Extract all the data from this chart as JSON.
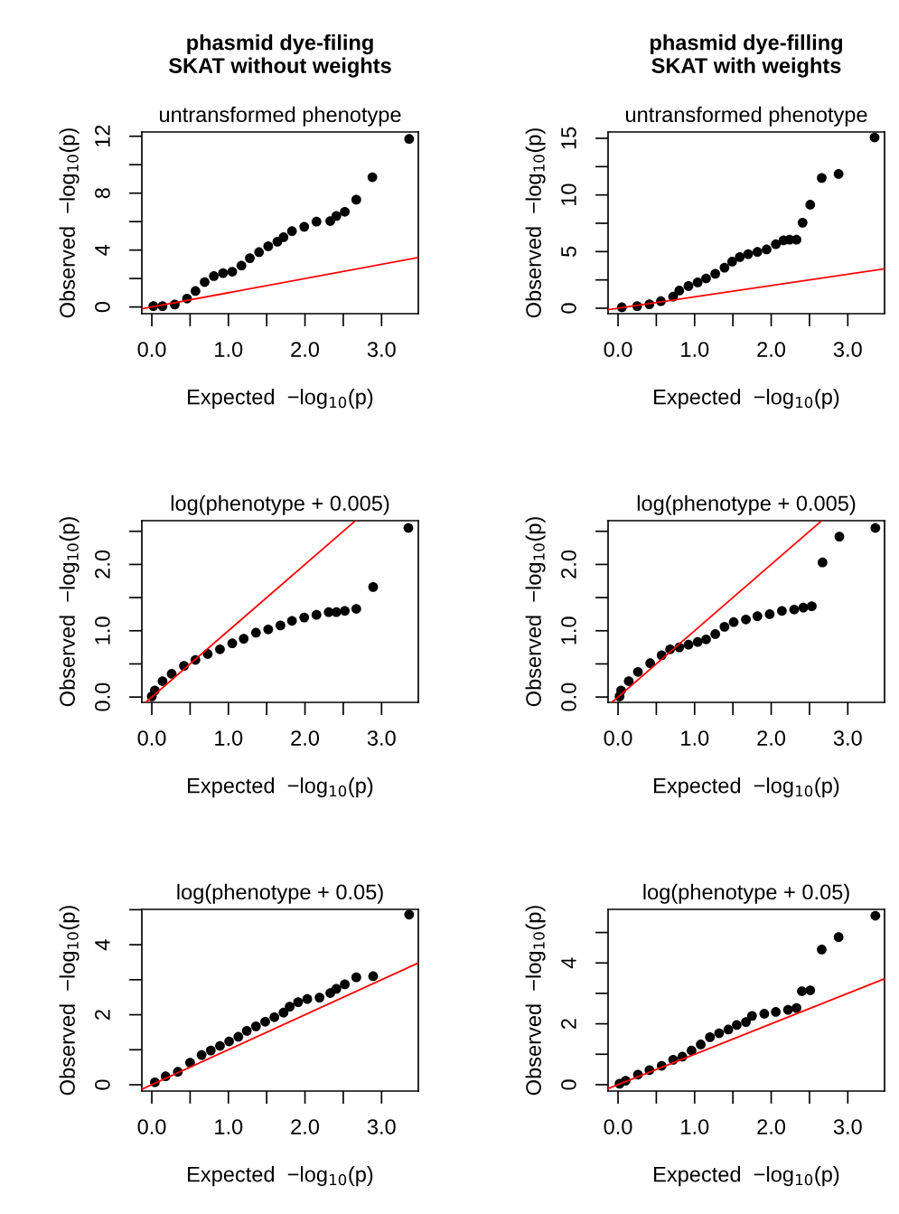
{
  "chart_data": [
    {
      "type": "scatter",
      "title": "phasmid dye-filing\nSKAT without weights",
      "subtitle": "untransformed phenotype",
      "xlabel": "Expected  −log$_{10}$(p)",
      "ylabel": "Observed  −log$_{10}$(p)",
      "xlim": [
        -0.13,
        3.48
      ],
      "ylim": [
        -0.47,
        12.3
      ],
      "xticks": [
        {
          "value": 0,
          "label": "0.0"
        },
        {
          "value": 0.5,
          "label": null
        },
        {
          "value": 1,
          "label": "1.0"
        },
        {
          "value": 1.5,
          "label": null
        },
        {
          "value": 2,
          "label": "2.0"
        },
        {
          "value": 2.5,
          "label": null
        },
        {
          "value": 3,
          "label": "3.0"
        }
      ],
      "yticks": [
        0,
        {
          "value": 2,
          "label": null
        },
        4,
        {
          "value": 6,
          "label": null
        },
        8,
        {
          "value": 10,
          "label": null
        },
        12
      ],
      "series": [
        {
          "marker": "circle",
          "color": "#000000",
          "x": [
            0.02,
            0.14,
            0.3,
            0.46,
            0.57,
            0.69,
            0.81,
            0.93,
            1.05,
            1.17,
            1.28,
            1.4,
            1.52,
            1.64,
            1.72,
            1.83,
            1.99,
            2.15,
            2.33,
            2.41,
            2.52,
            2.67,
            2.88,
            3.36
          ],
          "values": [
            0.06,
            0.06,
            0.17,
            0.59,
            1.12,
            1.75,
            2.17,
            2.38,
            2.48,
            2.91,
            3.43,
            3.85,
            4.27,
            4.59,
            4.9,
            5.33,
            5.64,
            6.0,
            6.04,
            6.4,
            6.69,
            7.54,
            9.12,
            11.81
          ]
        },
        {
          "type": "line",
          "color": "#ff0000",
          "x": [
            -0.13,
            3.48
          ],
          "values": [
            -0.13,
            3.48
          ]
        }
      ]
    },
    {
      "type": "scatter",
      "title": "phasmid dye-filling\nSKAT with weights",
      "subtitle": "untransformed phenotype",
      "xlabel": "Expected  −log$_{10}$(p)",
      "ylabel": "Observed  −log$_{10}$(p)",
      "xlim": [
        -0.13,
        3.48
      ],
      "ylim": [
        -0.48,
        15.56
      ],
      "xticks": [
        {
          "value": 0,
          "label": "0.0"
        },
        {
          "value": 0.5,
          "label": null
        },
        {
          "value": 1,
          "label": "1.0"
        },
        {
          "value": 1.5,
          "label": null
        },
        {
          "value": 2,
          "label": "2.0"
        },
        {
          "value": 2.5,
          "label": null
        },
        {
          "value": 3,
          "label": "3.0"
        }
      ],
      "yticks": [
        0,
        {
          "value": 2.5,
          "label": null
        },
        5,
        {
          "value": 7.5,
          "label": null
        },
        10,
        {
          "value": 12.5,
          "label": null
        },
        15
      ],
      "series": [
        {
          "marker": "circle",
          "color": "#000000",
          "x": [
            0.05,
            0.25,
            0.41,
            0.56,
            0.72,
            0.8,
            0.92,
            1.04,
            1.15,
            1.27,
            1.39,
            1.49,
            1.59,
            1.7,
            1.82,
            1.94,
            2.06,
            2.16,
            2.24,
            2.33,
            2.41,
            2.51,
            2.66,
            2.88,
            3.35
          ],
          "values": [
            0.08,
            0.19,
            0.35,
            0.62,
            1.02,
            1.56,
            1.96,
            2.28,
            2.63,
            3.04,
            3.58,
            4.11,
            4.52,
            4.78,
            4.97,
            5.19,
            5.65,
            5.99,
            6.05,
            6.05,
            7.55,
            9.14,
            11.5,
            11.85,
            15.08
          ]
        },
        {
          "type": "line",
          "color": "#ff0000",
          "x": [
            -0.13,
            3.48
          ],
          "values": [
            -0.13,
            3.48
          ]
        }
      ]
    },
    {
      "type": "scatter",
      "subtitle": "log(phenotype + 0.005)",
      "xlabel": "Expected  −log$_{10}$(p)",
      "ylabel": "Observed  −log$_{10}$(p)",
      "xlim": [
        -0.13,
        3.48
      ],
      "ylim": [
        -0.08,
        2.66
      ],
      "xticks": [
        {
          "value": 0,
          "label": "0.0"
        },
        {
          "value": 0.5,
          "label": null
        },
        {
          "value": 1,
          "label": "1.0"
        },
        {
          "value": 1.5,
          "label": null
        },
        {
          "value": 2,
          "label": "2.0"
        },
        {
          "value": 2.5,
          "label": null
        },
        {
          "value": 3,
          "label": "3.0"
        }
      ],
      "yticks": [
        {
          "value": 0,
          "label": "0.0"
        },
        {
          "value": 0.5,
          "label": null
        },
        {
          "value": 1,
          "label": "1.0"
        },
        {
          "value": 1.5,
          "label": null
        },
        {
          "value": 2,
          "label": "2.0"
        },
        {
          "value": 2.5,
          "label": null
        }
      ],
      "series": [
        {
          "marker": "circle",
          "color": "#000000",
          "x": [
            0.0,
            0.04,
            0.14,
            0.26,
            0.42,
            0.57,
            0.73,
            0.89,
            1.05,
            1.2,
            1.36,
            1.52,
            1.68,
            1.83,
            1.99,
            2.15,
            2.31,
            2.41,
            2.52,
            2.67,
            2.89,
            3.35
          ],
          "values": [
            0.01,
            0.1,
            0.24,
            0.35,
            0.47,
            0.56,
            0.65,
            0.72,
            0.81,
            0.88,
            0.97,
            1.02,
            1.08,
            1.15,
            1.2,
            1.24,
            1.28,
            1.28,
            1.3,
            1.33,
            1.66,
            2.55
          ]
        },
        {
          "type": "line",
          "color": "#ff0000",
          "x": [
            -0.08,
            2.66
          ],
          "values": [
            -0.08,
            2.66
          ]
        }
      ]
    },
    {
      "type": "scatter",
      "subtitle": "log(phenotype + 0.005)",
      "xlabel": "Expected  −log$_{10}$(p)",
      "ylabel": "Observed  −log$_{10}$(p)",
      "xlim": [
        -0.13,
        3.48
      ],
      "ylim": [
        -0.08,
        2.66
      ],
      "xticks": [
        {
          "value": 0,
          "label": "0.0"
        },
        {
          "value": 0.5,
          "label": null
        },
        {
          "value": 1,
          "label": "1.0"
        },
        {
          "value": 1.5,
          "label": null
        },
        {
          "value": 2,
          "label": "2.0"
        },
        {
          "value": 2.5,
          "label": null
        },
        {
          "value": 3,
          "label": "3.0"
        }
      ],
      "yticks": [
        {
          "value": 0,
          "label": "0.0"
        },
        {
          "value": 0.5,
          "label": null
        },
        {
          "value": 1,
          "label": "1.0"
        },
        {
          "value": 1.5,
          "label": null
        },
        {
          "value": 2,
          "label": "2.0"
        },
        {
          "value": 2.5,
          "label": null
        }
      ],
      "series": [
        {
          "marker": "circle",
          "color": "#000000",
          "x": [
            0.02,
            0.04,
            0.14,
            0.26,
            0.42,
            0.57,
            0.68,
            0.8,
            0.92,
            1.04,
            1.15,
            1.27,
            1.39,
            1.51,
            1.67,
            1.82,
            1.98,
            2.14,
            2.3,
            2.42,
            2.53,
            2.67,
            2.89,
            3.36
          ],
          "values": [
            0.01,
            0.1,
            0.24,
            0.38,
            0.51,
            0.63,
            0.72,
            0.75,
            0.79,
            0.83,
            0.87,
            0.95,
            1.06,
            1.13,
            1.17,
            1.22,
            1.25,
            1.3,
            1.32,
            1.35,
            1.37,
            2.03,
            2.42,
            2.55
          ]
        },
        {
          "type": "line",
          "color": "#ff0000",
          "x": [
            -0.08,
            2.66
          ],
          "values": [
            -0.08,
            2.66
          ]
        }
      ]
    },
    {
      "type": "scatter",
      "subtitle": "log(phenotype + 0.05)",
      "xlabel": "Expected  −log$_{10}$(p)",
      "ylabel": "Observed  −log$_{10}$(p)",
      "xlim": [
        -0.13,
        3.48
      ],
      "ylim": [
        -0.18,
        5.01
      ],
      "xticks": [
        {
          "value": 0,
          "label": "0.0"
        },
        {
          "value": 0.5,
          "label": null
        },
        {
          "value": 1,
          "label": "1.0"
        },
        {
          "value": 1.5,
          "label": null
        },
        {
          "value": 2,
          "label": "2.0"
        },
        {
          "value": 2.5,
          "label": null
        },
        {
          "value": 3,
          "label": "3.0"
        }
      ],
      "yticks": [
        0,
        {
          "value": 1,
          "label": null
        },
        2,
        {
          "value": 3,
          "label": null
        },
        4,
        {
          "value": 5,
          "label": null
        }
      ],
      "series": [
        {
          "marker": "circle",
          "color": "#000000",
          "x": [
            0.04,
            0.18,
            0.34,
            0.5,
            0.65,
            0.77,
            0.89,
            1.01,
            1.13,
            1.24,
            1.36,
            1.48,
            1.6,
            1.72,
            1.8,
            1.91,
            2.03,
            2.19,
            2.33,
            2.41,
            2.52,
            2.67,
            2.89,
            3.36
          ],
          "values": [
            0.07,
            0.24,
            0.37,
            0.63,
            0.85,
            0.98,
            1.11,
            1.24,
            1.37,
            1.54,
            1.67,
            1.8,
            1.93,
            2.06,
            2.23,
            2.36,
            2.45,
            2.49,
            2.62,
            2.74,
            2.87,
            3.07,
            3.1,
            4.86
          ]
        },
        {
          "type": "line",
          "color": "#ff0000",
          "x": [
            -0.13,
            3.48
          ],
          "values": [
            -0.13,
            3.48
          ]
        }
      ]
    },
    {
      "type": "scatter",
      "subtitle": "log(phenotype + 0.05)",
      "xlabel": "Expected  −log$_{10}$(p)",
      "ylabel": "Observed  −log$_{10}$(p)",
      "xlim": [
        -0.13,
        3.48
      ],
      "ylim": [
        -0.21,
        5.76
      ],
      "xticks": [
        {
          "value": 0,
          "label": "0.0"
        },
        {
          "value": 0.5,
          "label": null
        },
        {
          "value": 1,
          "label": "1.0"
        },
        {
          "value": 1.5,
          "label": null
        },
        {
          "value": 2,
          "label": "2.0"
        },
        {
          "value": 2.5,
          "label": null
        },
        {
          "value": 3,
          "label": "3.0"
        }
      ],
      "yticks": [
        0,
        {
          "value": 1,
          "label": null
        },
        2,
        {
          "value": 3,
          "label": null
        },
        4,
        {
          "value": 5,
          "label": null
        }
      ],
      "series": [
        {
          "marker": "circle",
          "color": "#000000",
          "x": [
            0.02,
            0.1,
            0.26,
            0.41,
            0.57,
            0.72,
            0.84,
            0.96,
            1.08,
            1.2,
            1.32,
            1.44,
            1.55,
            1.67,
            1.75,
            1.91,
            2.06,
            2.22,
            2.33,
            2.4,
            2.51,
            2.66,
            2.88,
            3.36
          ],
          "values": [
            0.03,
            0.13,
            0.33,
            0.48,
            0.62,
            0.82,
            0.92,
            1.12,
            1.32,
            1.56,
            1.69,
            1.81,
            1.96,
            2.06,
            2.26,
            2.33,
            2.39,
            2.46,
            2.52,
            3.07,
            3.1,
            4.44,
            4.85,
            5.55
          ]
        },
        {
          "type": "line",
          "color": "#ff0000",
          "x": [
            -0.13,
            3.48
          ],
          "values": [
            -0.13,
            3.48
          ]
        }
      ]
    }
  ]
}
